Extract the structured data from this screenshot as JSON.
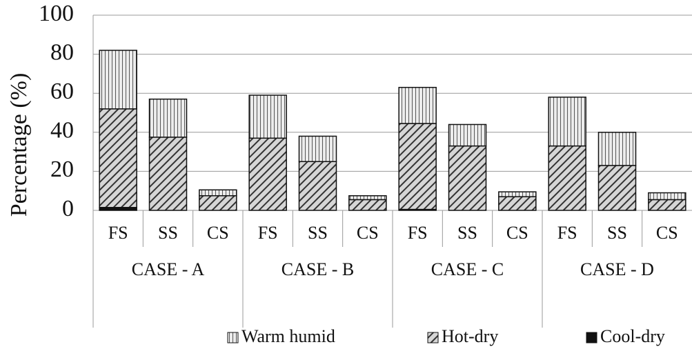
{
  "chart_data": {
    "type": "stacked_bar",
    "y_label": "Percentage (%)",
    "categories": [
      "FS",
      "SS",
      "CS",
      "FS",
      "SS",
      "CS",
      "FS",
      "SS",
      "CS",
      "FS",
      "SS",
      "CS"
    ],
    "groups": [
      "CASE - A",
      "CASE - B",
      "CASE - C",
      "CASE - D"
    ],
    "series": [
      {
        "name": "Warm humid",
        "color": "#e8e8e8",
        "pattern": "vertical",
        "values": [
          30,
          19.5,
          3,
          22,
          13,
          2,
          18.5,
          11,
          2.5,
          25,
          17,
          3.5
        ]
      },
      {
        "name": "Hot-dry",
        "color": "#d0d0d0",
        "pattern": "diagonal",
        "values": [
          50.5,
          37.5,
          7.5,
          37,
          25,
          5.5,
          44,
          33,
          7,
          33,
          23,
          5.5
        ]
      },
      {
        "name": "Cool-dry",
        "color": "#111111",
        "pattern": "solid",
        "values": [
          1.5,
          0,
          0,
          0,
          0,
          0,
          0.5,
          0,
          0,
          0,
          0,
          0
        ]
      }
    ],
    "ylim": [
      0,
      100
    ],
    "yticks": [
      0,
      20,
      40,
      60,
      80,
      100
    ],
    "grid": true,
    "legend": "bottom"
  }
}
